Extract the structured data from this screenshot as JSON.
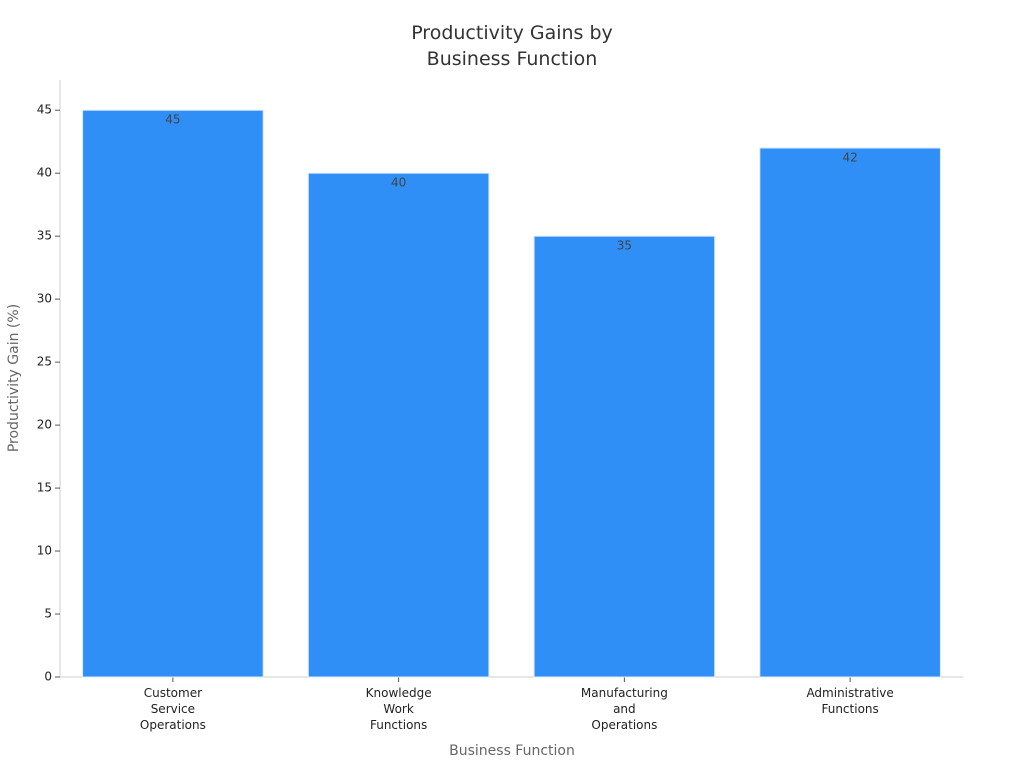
{
  "chart_data": {
    "type": "bar",
    "title": "Productivity Gains by\nBusiness Function",
    "x_label": "Business Function",
    "y_label": "Productivity Gain (%)",
    "categories": [
      "Customer\nService\nOperations",
      "Knowledge\nWork\nFunctions",
      "Manufacturing\nand\nOperations",
      "Administrative\nFunctions"
    ],
    "values": [
      45,
      40,
      35,
      42
    ],
    "color": "#2f8ff7",
    "ylim": [
      0,
      47.4
    ],
    "yticks": [
      0,
      5,
      10,
      15,
      20,
      25,
      30,
      35,
      40,
      45
    ],
    "grid": false
  }
}
